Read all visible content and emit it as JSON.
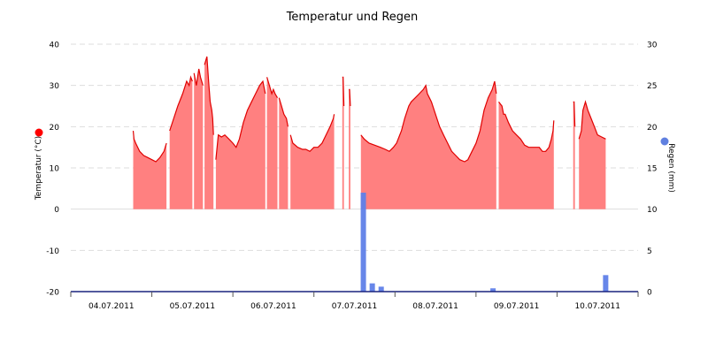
{
  "chart_data": {
    "type": "area",
    "title": "Temperatur und Regen",
    "xlabel": "",
    "x_tick_labels": [
      "04.07.2011",
      "05.07.2011",
      "06.07.2011",
      "07.07.2011",
      "08.07.2011",
      "09.07.2011",
      "10.07.2011"
    ],
    "xlim": [
      0,
      7
    ],
    "y_left": {
      "label": "Temperatur (°C)",
      "ylim": [
        -20,
        40
      ],
      "ticks": [
        "-20",
        "-10",
        "0",
        "10",
        "20",
        "30",
        "40"
      ]
    },
    "y_right": {
      "label": "Regen (mm)",
      "ylim": [
        0,
        30
      ],
      "ticks": [
        "0",
        "5",
        "10",
        "15",
        "20",
        "25",
        "30"
      ]
    },
    "grid": true,
    "legend": "markers beside axis labels",
    "colors": {
      "temperature_fill": "#ff8080",
      "temperature_line": "#e00000",
      "rain_bar": "#5f7fe8",
      "temperature_marker": "#ff0000",
      "rain_marker": "#6080e0",
      "grid": "#dddddd",
      "axis": "#1a237e"
    },
    "series": [
      {
        "kind": "temperature",
        "axis": "left",
        "segments": [
          [
            [
              0.77,
              19
            ],
            [
              0.78,
              17
            ],
            [
              0.8,
              16
            ],
            [
              0.85,
              14
            ],
            [
              0.9,
              13
            ],
            [
              0.95,
              12.5
            ],
            [
              1.0,
              12
            ],
            [
              1.05,
              11.5
            ],
            [
              1.1,
              12.5
            ],
            [
              1.15,
              14
            ],
            [
              1.18,
              16
            ]
          ],
          [
            [
              1.22,
              19
            ],
            [
              1.27,
              22
            ],
            [
              1.32,
              25
            ],
            [
              1.38,
              28
            ],
            [
              1.43,
              31
            ],
            [
              1.46,
              30
            ],
            [
              1.48,
              32
            ],
            [
              1.5,
              31
            ]
          ],
          [
            [
              1.52,
              33
            ],
            [
              1.55,
              30
            ],
            [
              1.58,
              34
            ],
            [
              1.6,
              32
            ],
            [
              1.63,
              30
            ]
          ],
          [
            [
              1.65,
              35
            ],
            [
              1.68,
              37
            ],
            [
              1.7,
              31
            ],
            [
              1.72,
              26
            ],
            [
              1.74,
              24
            ],
            [
              1.75,
              22
            ],
            [
              1.76,
              18
            ]
          ],
          [
            [
              1.79,
              12
            ],
            [
              1.82,
              18
            ],
            [
              1.86,
              17.5
            ],
            [
              1.9,
              18
            ],
            [
              1.95,
              17
            ],
            [
              2.0,
              16
            ],
            [
              2.04,
              15
            ],
            [
              2.08,
              17
            ],
            [
              2.13,
              21
            ],
            [
              2.18,
              24
            ],
            [
              2.23,
              26
            ],
            [
              2.28,
              28
            ],
            [
              2.33,
              30
            ],
            [
              2.37,
              31
            ],
            [
              2.4,
              28
            ]
          ],
          [
            [
              2.42,
              32
            ],
            [
              2.45,
              30
            ],
            [
              2.48,
              28
            ],
            [
              2.5,
              29
            ],
            [
              2.52,
              28
            ],
            [
              2.55,
              27
            ]
          ],
          [
            [
              2.57,
              27
            ],
            [
              2.6,
              25
            ],
            [
              2.63,
              23
            ],
            [
              2.66,
              22
            ],
            [
              2.68,
              20
            ]
          ],
          [
            [
              2.71,
              18
            ],
            [
              2.74,
              16
            ],
            [
              2.8,
              15
            ],
            [
              2.86,
              14.5
            ],
            [
              2.9,
              14.5
            ],
            [
              2.95,
              14
            ],
            [
              3.0,
              15
            ],
            [
              3.05,
              15
            ],
            [
              3.1,
              16
            ],
            [
              3.15,
              18
            ],
            [
              3.2,
              20
            ],
            [
              3.24,
              22
            ],
            [
              3.25,
              23
            ]
          ],
          [
            [
              3.35,
              32
            ],
            [
              3.36,
              32
            ],
            [
              3.37,
              25
            ]
          ],
          [
            [
              3.43,
              29
            ],
            [
              3.44,
              29
            ],
            [
              3.45,
              25
            ]
          ],
          [
            [
              3.58,
              18
            ],
            [
              3.62,
              17
            ],
            [
              3.68,
              16
            ],
            [
              3.75,
              15.5
            ],
            [
              3.82,
              15
            ],
            [
              3.88,
              14.5
            ],
            [
              3.93,
              14
            ],
            [
              3.98,
              15
            ],
            [
              4.02,
              16
            ],
            [
              4.08,
              19
            ],
            [
              4.12,
              22
            ],
            [
              4.17,
              25
            ],
            [
              4.2,
              26
            ],
            [
              4.25,
              27
            ],
            [
              4.3,
              28
            ],
            [
              4.35,
              29
            ],
            [
              4.38,
              30
            ],
            [
              4.4,
              28
            ],
            [
              4.45,
              26
            ],
            [
              4.5,
              23
            ],
            [
              4.55,
              20
            ],
            [
              4.6,
              18
            ],
            [
              4.65,
              16
            ],
            [
              4.7,
              14
            ],
            [
              4.75,
              13
            ],
            [
              4.8,
              12
            ],
            [
              4.86,
              11.5
            ],
            [
              4.9,
              12
            ],
            [
              4.95,
              14
            ],
            [
              5.0,
              16
            ],
            [
              5.05,
              19
            ],
            [
              5.1,
              24
            ],
            [
              5.15,
              27
            ],
            [
              5.2,
              29
            ],
            [
              5.23,
              31
            ],
            [
              5.25,
              28
            ]
          ],
          [
            [
              5.28,
              26
            ],
            [
              5.32,
              25
            ],
            [
              5.34,
              23
            ],
            [
              5.36,
              23
            ],
            [
              5.4,
              21
            ],
            [
              5.45,
              19
            ],
            [
              5.5,
              18
            ],
            [
              5.55,
              17
            ],
            [
              5.6,
              15.5
            ],
            [
              5.65,
              15
            ],
            [
              5.72,
              15
            ],
            [
              5.78,
              15
            ],
            [
              5.82,
              14
            ],
            [
              5.86,
              14
            ],
            [
              5.9,
              15
            ],
            [
              5.93,
              17
            ],
            [
              5.95,
              19
            ],
            [
              5.96,
              21.5
            ]
          ],
          [
            [
              6.2,
              26
            ],
            [
              6.21,
              26
            ],
            [
              6.22,
              20
            ]
          ],
          [
            [
              6.27,
              17
            ],
            [
              6.3,
              19
            ],
            [
              6.32,
              24
            ],
            [
              6.35,
              26
            ],
            [
              6.38,
              24
            ],
            [
              6.42,
              22
            ],
            [
              6.46,
              20
            ],
            [
              6.5,
              18
            ],
            [
              6.55,
              17.5
            ],
            [
              6.6,
              17
            ]
          ]
        ]
      },
      {
        "kind": "rain",
        "axis": "right",
        "bars": [
          {
            "x": 3.61,
            "value": 12
          },
          {
            "x": 3.72,
            "value": 1.0
          },
          {
            "x": 3.83,
            "value": 0.6
          },
          {
            "x": 5.21,
            "value": 0.4
          },
          {
            "x": 6.6,
            "value": 2.0
          }
        ]
      }
    ]
  }
}
